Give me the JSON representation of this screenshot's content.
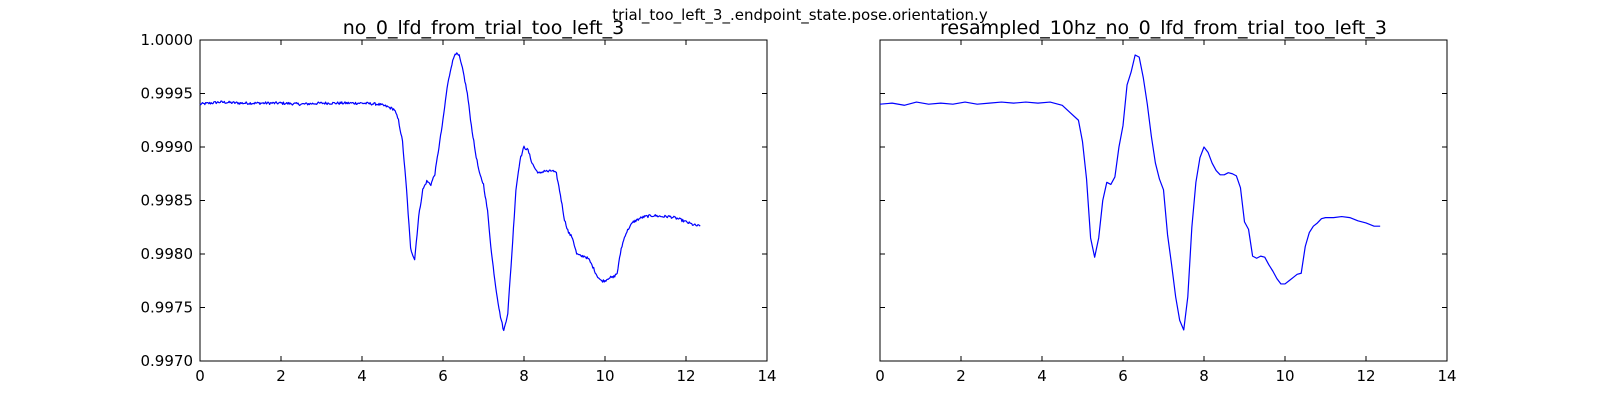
{
  "figure": {
    "suptitle": "trial_too_left_3_.endpoint_state.pose.orientation.y"
  },
  "chart_data": [
    {
      "type": "line",
      "title": "no_0_lfd_from_trial_too_left_3",
      "xlabel": "",
      "ylabel": "",
      "xlim": [
        0,
        14
      ],
      "ylim": [
        0.997,
        1.0
      ],
      "x_ticks": [
        0,
        2,
        4,
        6,
        8,
        10,
        12,
        14
      ],
      "y_ticks": [
        0.997,
        0.9975,
        0.998,
        0.9985,
        0.999,
        0.9995,
        1.0
      ],
      "x_tick_labels": [
        "0",
        "2",
        "4",
        "6",
        "8",
        "10",
        "12",
        "14"
      ],
      "y_tick_labels": [
        "0.9970",
        "0.9975",
        "0.9980",
        "0.9985",
        "0.9990",
        "0.9995",
        "1.0000"
      ],
      "show_y_tick_labels": true,
      "grid": false,
      "line_color": "#0000ff",
      "noisy": true,
      "series": [
        {
          "x": [
            0,
            0.5,
            1.0,
            1.5,
            2.0,
            2.5,
            3.0,
            3.5,
            4.0,
            4.4,
            4.6,
            4.8,
            4.9,
            5.0,
            5.1,
            5.2,
            5.3,
            5.4,
            5.5,
            5.6,
            5.7,
            5.8,
            5.9,
            6.0,
            6.1,
            6.2,
            6.3,
            6.4,
            6.5,
            6.6,
            6.7,
            6.8,
            6.9,
            7.0,
            7.1,
            7.2,
            7.3,
            7.4,
            7.5,
            7.6,
            7.7,
            7.8,
            7.9,
            8.0,
            8.1,
            8.2,
            8.3,
            8.4,
            8.5,
            8.6,
            8.7,
            8.8,
            8.9,
            9.0,
            9.1,
            9.2,
            9.3,
            9.4,
            9.5,
            9.6,
            9.7,
            9.8,
            9.9,
            10.0,
            10.1,
            10.2,
            10.3,
            10.4,
            10.5,
            10.6,
            10.7,
            10.8,
            10.9,
            11.0,
            11.2,
            11.4,
            11.6,
            11.8,
            12.0,
            12.2,
            12.35
          ],
          "y": [
            0.9994,
            0.99942,
            0.99941,
            0.99941,
            0.99941,
            0.9994,
            0.99941,
            0.99941,
            0.99941,
            0.9994,
            0.99938,
            0.99935,
            0.99925,
            0.99905,
            0.9986,
            0.99805,
            0.99795,
            0.99835,
            0.9986,
            0.99868,
            0.99865,
            0.99875,
            0.999,
            0.99925,
            0.99955,
            0.99975,
            0.99988,
            0.99985,
            0.9997,
            0.9995,
            0.9992,
            0.99895,
            0.99875,
            0.99865,
            0.9984,
            0.998,
            0.9977,
            0.99745,
            0.99728,
            0.99745,
            0.998,
            0.9986,
            0.99888,
            0.999,
            0.99897,
            0.99885,
            0.99878,
            0.99875,
            0.99878,
            0.99877,
            0.99878,
            0.99875,
            0.99855,
            0.99832,
            0.9982,
            0.99815,
            0.998,
            0.99798,
            0.99798,
            0.99795,
            0.99788,
            0.9978,
            0.99775,
            0.99775,
            0.99778,
            0.99778,
            0.99782,
            0.99805,
            0.99818,
            0.99825,
            0.9983,
            0.99832,
            0.99834,
            0.99835,
            0.99836,
            0.99835,
            0.99835,
            0.99833,
            0.9983,
            0.99827,
            0.99826
          ]
        }
      ]
    },
    {
      "type": "line",
      "title": "resampled_10hz_no_0_lfd_from_trial_too_left_3",
      "xlabel": "",
      "ylabel": "",
      "xlim": [
        0,
        14
      ],
      "ylim": [
        0.997,
        1.0
      ],
      "x_ticks": [
        0,
        2,
        4,
        6,
        8,
        10,
        12,
        14
      ],
      "y_ticks": [
        0.997,
        0.9975,
        0.998,
        0.9985,
        0.999,
        0.9995,
        1.0
      ],
      "x_tick_labels": [
        "0",
        "2",
        "4",
        "6",
        "8",
        "10",
        "12",
        "14"
      ],
      "y_tick_labels": [],
      "show_y_tick_labels": false,
      "grid": false,
      "line_color": "#0000ff",
      "noisy": false,
      "series": [
        {
          "x": [
            0,
            0.3,
            0.6,
            0.9,
            1.2,
            1.5,
            1.8,
            2.1,
            2.4,
            2.7,
            3.0,
            3.3,
            3.6,
            3.9,
            4.2,
            4.5,
            4.7,
            4.9,
            5.0,
            5.1,
            5.2,
            5.3,
            5.4,
            5.5,
            5.6,
            5.7,
            5.8,
            5.9,
            6.0,
            6.1,
            6.2,
            6.3,
            6.4,
            6.5,
            6.6,
            6.7,
            6.8,
            6.9,
            7.0,
            7.1,
            7.2,
            7.3,
            7.4,
            7.5,
            7.6,
            7.7,
            7.8,
            7.9,
            8.0,
            8.1,
            8.2,
            8.3,
            8.4,
            8.5,
            8.6,
            8.7,
            8.8,
            8.9,
            9.0,
            9.1,
            9.2,
            9.3,
            9.4,
            9.5,
            9.6,
            9.7,
            9.8,
            9.9,
            10.0,
            10.1,
            10.2,
            10.3,
            10.4,
            10.5,
            10.6,
            10.7,
            10.8,
            10.9,
            11.0,
            11.2,
            11.4,
            11.6,
            11.8,
            12.0,
            12.2,
            12.35
          ],
          "y": [
            0.9994,
            0.99941,
            0.99939,
            0.99942,
            0.9994,
            0.99941,
            0.9994,
            0.99942,
            0.9994,
            0.99941,
            0.99942,
            0.99941,
            0.99942,
            0.99941,
            0.99942,
            0.99939,
            0.99932,
            0.99925,
            0.99905,
            0.9987,
            0.99815,
            0.99797,
            0.99815,
            0.9985,
            0.99867,
            0.99865,
            0.99872,
            0.999,
            0.9992,
            0.99958,
            0.9997,
            0.99986,
            0.99984,
            0.99965,
            0.9994,
            0.9991,
            0.99885,
            0.9987,
            0.9986,
            0.99818,
            0.9979,
            0.9976,
            0.99738,
            0.99729,
            0.9976,
            0.99825,
            0.99867,
            0.9989,
            0.999,
            0.99895,
            0.99885,
            0.99878,
            0.99874,
            0.99874,
            0.99876,
            0.99875,
            0.99873,
            0.99862,
            0.9983,
            0.99823,
            0.99798,
            0.99796,
            0.99798,
            0.99797,
            0.9979,
            0.99784,
            0.99777,
            0.99772,
            0.99772,
            0.99775,
            0.99778,
            0.99781,
            0.99782,
            0.99807,
            0.9982,
            0.99826,
            0.99829,
            0.99833,
            0.99834,
            0.99834,
            0.99835,
            0.99834,
            0.99831,
            0.99829,
            0.99826,
            0.99826
          ]
        }
      ]
    }
  ]
}
